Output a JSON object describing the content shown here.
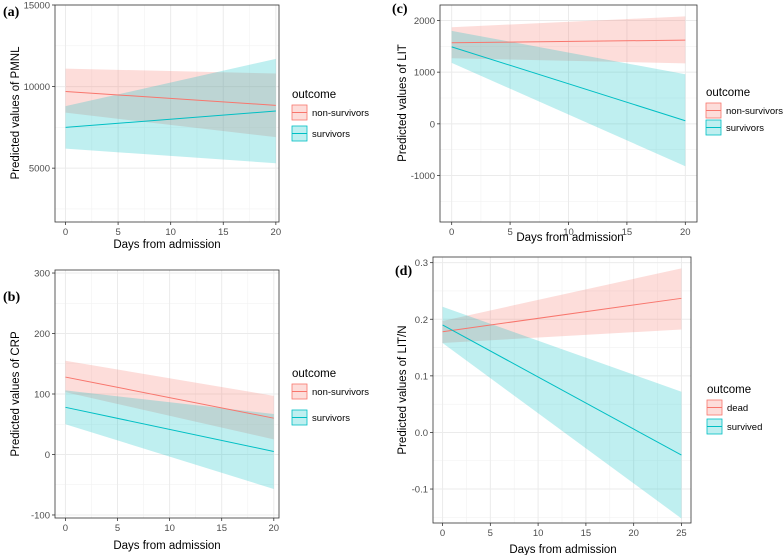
{
  "chart_data": [
    {
      "panel_label": "(a)",
      "type": "line",
      "xlabel": "Days from admission",
      "ylabel": "Predicted values of PMNL",
      "xlim": [
        -1,
        20.3
      ],
      "ylim": [
        1700,
        15000
      ],
      "x_ticks": [
        0,
        5,
        10,
        15,
        20
      ],
      "x_tick_labels": [
        "0",
        "5",
        "10",
        "15",
        "20"
      ],
      "y_ticks": [
        5000,
        10000,
        15000
      ],
      "y_tick_labels": [
        "5000",
        "10000",
        "15000"
      ],
      "legend_title": "outcome",
      "series": [
        {
          "name": "non-survivors",
          "color": "#F8766D",
          "x": [
            0,
            20
          ],
          "y": [
            9700,
            8850
          ],
          "lower": [
            8400,
            6900
          ],
          "upper": [
            11100,
            10800
          ]
        },
        {
          "name": "survivors",
          "color": "#00BFC4",
          "x": [
            0,
            20
          ],
          "y": [
            7500,
            8500
          ],
          "lower": [
            6200,
            5300
          ],
          "upper": [
            8800,
            11700
          ]
        }
      ]
    },
    {
      "panel_label": "(b)",
      "type": "line",
      "xlabel": "Days from admission",
      "ylabel": "Predicted values of CRP",
      "xlim": [
        -1,
        20.5
      ],
      "ylim": [
        -105,
        305
      ],
      "x_ticks": [
        0,
        5,
        10,
        15,
        20
      ],
      "x_tick_labels": [
        "0",
        "5",
        "10",
        "15",
        "20"
      ],
      "y_ticks": [
        -100,
        0,
        100,
        200,
        300
      ],
      "y_tick_labels": [
        "-100",
        "0",
        "100",
        "200",
        "300"
      ],
      "legend_title": "outcome",
      "series": [
        {
          "name": "non-survivors",
          "color": "#F8766D",
          "x": [
            0,
            20
          ],
          "y": [
            128,
            60
          ],
          "lower": [
            103,
            25
          ],
          "upper": [
            155,
            97
          ]
        },
        {
          "name": "survivors",
          "color": "#00BFC4",
          "x": [
            0,
            20
          ],
          "y": [
            78,
            5
          ],
          "lower": [
            50,
            -57
          ],
          "upper": [
            106,
            67
          ]
        }
      ]
    },
    {
      "panel_label": "(c)",
      "type": "line",
      "xlabel": "Days from admission",
      "ylabel": "Predicted values of LIT",
      "xlim": [
        -1,
        21
      ],
      "ylim": [
        -1900,
        2300
      ],
      "x_ticks": [
        0,
        5,
        10,
        15,
        20
      ],
      "x_tick_labels": [
        "0",
        "5",
        "10",
        "15",
        "20"
      ],
      "y_ticks": [
        -1000,
        0,
        1000,
        2000
      ],
      "y_tick_labels": [
        "-1000",
        "0",
        "1000",
        "2000"
      ],
      "legend_title": "outcome",
      "series": [
        {
          "name": "non-survivors",
          "color": "#F8766D",
          "x": [
            0,
            20
          ],
          "y": [
            1570,
            1620
          ],
          "lower": [
            1270,
            1170
          ],
          "upper": [
            1870,
            2080
          ]
        },
        {
          "name": "survivors",
          "color": "#00BFC4",
          "x": [
            0,
            20
          ],
          "y": [
            1490,
            60
          ],
          "lower": [
            1180,
            -820
          ],
          "upper": [
            1800,
            960
          ]
        }
      ]
    },
    {
      "panel_label": "(d)",
      "type": "line",
      "xlabel": "Days from admission",
      "ylabel": "Predicted values of LIT/N",
      "xlim": [
        -1,
        26
      ],
      "ylim": [
        -0.16,
        0.31
      ],
      "x_ticks": [
        0,
        5,
        10,
        15,
        20,
        25
      ],
      "x_tick_labels": [
        "0",
        "5",
        "10",
        "15",
        "20",
        "25"
      ],
      "y_ticks": [
        -0.1,
        0.0,
        0.1,
        0.2,
        0.3
      ],
      "y_tick_labels": [
        "-0.1",
        "0.0",
        "0.1",
        "0.2",
        "0.3"
      ],
      "legend_title": "outcome",
      "series": [
        {
          "name": "dead",
          "color": "#F8766D",
          "x": [
            0,
            25
          ],
          "y": [
            0.178,
            0.237
          ],
          "lower": [
            0.158,
            0.182
          ],
          "upper": [
            0.197,
            0.29
          ]
        },
        {
          "name": "survived",
          "color": "#00BFC4",
          "x": [
            0,
            25
          ],
          "y": [
            0.19,
            -0.04
          ],
          "lower": [
            0.158,
            -0.152
          ],
          "upper": [
            0.222,
            0.072
          ]
        }
      ]
    }
  ]
}
